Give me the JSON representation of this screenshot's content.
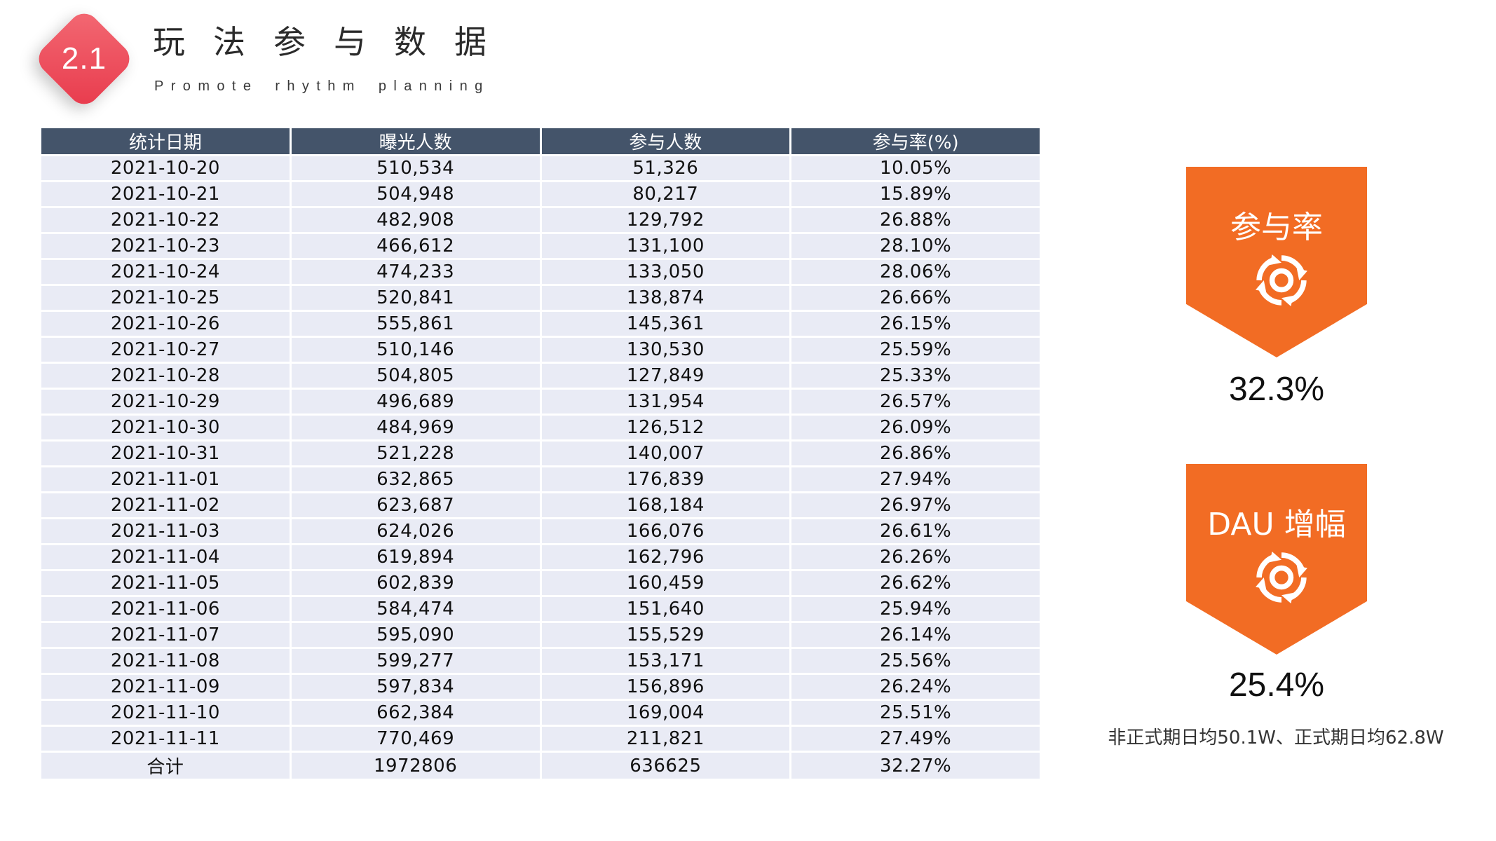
{
  "header": {
    "badge": "2.1",
    "title": "玩法参与数据",
    "subtitle": "Promote rhythm planning"
  },
  "table": {
    "columns": [
      "统计日期",
      "曝光人数",
      "参与人数",
      "参与率(%)"
    ],
    "rows": [
      [
        "2021-10-20",
        "510,534",
        "51,326",
        "10.05%"
      ],
      [
        "2021-10-21",
        "504,948",
        "80,217",
        "15.89%"
      ],
      [
        "2021-10-22",
        "482,908",
        "129,792",
        "26.88%"
      ],
      [
        "2021-10-23",
        "466,612",
        "131,100",
        "28.10%"
      ],
      [
        "2021-10-24",
        "474,233",
        "133,050",
        "28.06%"
      ],
      [
        "2021-10-25",
        "520,841",
        "138,874",
        "26.66%"
      ],
      [
        "2021-10-26",
        "555,861",
        "145,361",
        "26.15%"
      ],
      [
        "2021-10-27",
        "510,146",
        "130,530",
        "25.59%"
      ],
      [
        "2021-10-28",
        "504,805",
        "127,849",
        "25.33%"
      ],
      [
        "2021-10-29",
        "496,689",
        "131,954",
        "26.57%"
      ],
      [
        "2021-10-30",
        "484,969",
        "126,512",
        "26.09%"
      ],
      [
        "2021-10-31",
        "521,228",
        "140,007",
        "26.86%"
      ],
      [
        "2021-11-01",
        "632,865",
        "176,839",
        "27.94%"
      ],
      [
        "2021-11-02",
        "623,687",
        "168,184",
        "26.97%"
      ],
      [
        "2021-11-03",
        "624,026",
        "166,076",
        "26.61%"
      ],
      [
        "2021-11-04",
        "619,894",
        "162,796",
        "26.26%"
      ],
      [
        "2021-11-05",
        "602,839",
        "160,459",
        "26.62%"
      ],
      [
        "2021-11-06",
        "584,474",
        "151,640",
        "25.94%"
      ],
      [
        "2021-11-07",
        "595,090",
        "155,529",
        "26.14%"
      ],
      [
        "2021-11-08",
        "599,277",
        "153,171",
        "25.56%"
      ],
      [
        "2021-11-09",
        "597,834",
        "156,896",
        "26.24%"
      ],
      [
        "2021-11-10",
        "662,384",
        "169,004",
        "25.51%"
      ],
      [
        "2021-11-11",
        "770,469",
        "211,821",
        "27.49%"
      ],
      [
        "合计",
        "1972806",
        "636625",
        "32.27%"
      ]
    ]
  },
  "kpis": [
    {
      "label": "参与率",
      "icon": "refresh-cycle-icon",
      "value": "32.3%"
    },
    {
      "label": "DAU 增幅",
      "icon": "refresh-cycle-icon",
      "value": "25.4%",
      "note": "非正式期日均50.1W、正式期日均62.8W"
    }
  ],
  "colors": {
    "badge": "#e83a4c",
    "table_header": "#44546a",
    "table_cell": "#e9ebf5",
    "kpi_accent": "#f26c24"
  }
}
